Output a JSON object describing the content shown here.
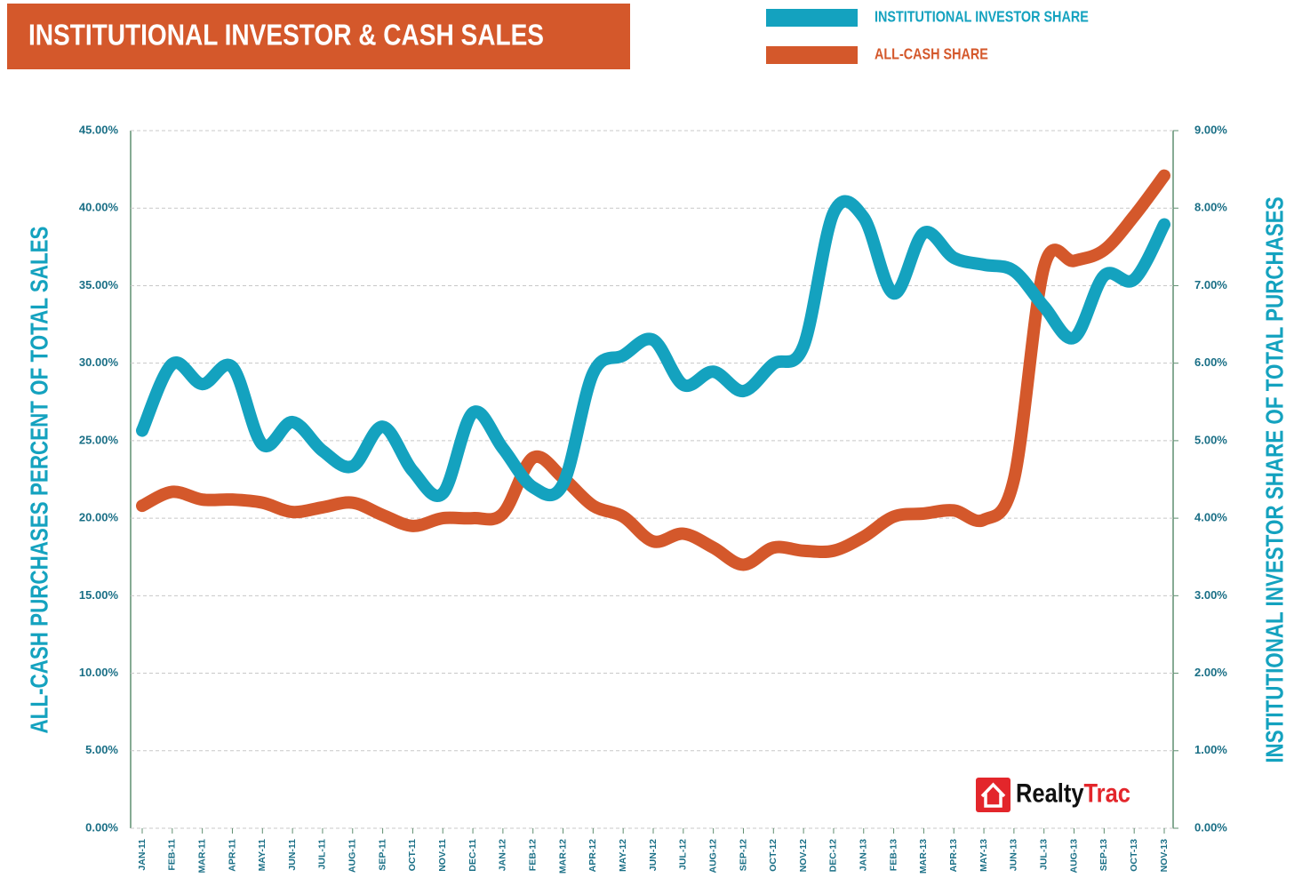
{
  "chart_data": {
    "type": "line",
    "title": "INSTITUTIONAL INVESTOR & CASH SALES",
    "y_label": "ALL-CASH PURCHASES PERCENT OF TOTAL SALES",
    "y2_label": "INSTITUTIONAL INVESTOR SHARE OF TOTAL PURCHASES",
    "logo": [
      "Realty",
      "Trac"
    ],
    "categories": [
      "JAN-11",
      "FEB-11",
      "MAR-11",
      "APR-11",
      "MAY-11",
      "JUN-11",
      "JUL-11",
      "AUG-11",
      "SEP-11",
      "OCT-11",
      "NOV-11",
      "DEC-11",
      "JAN-12",
      "FEB-12",
      "MAR-12",
      "APR-12",
      "MAY-12",
      "JUN-12",
      "JUL-12",
      "AUG-12",
      "SEP-12",
      "OCT-12",
      "NOV-12",
      "DEC-12",
      "JAN-13",
      "FEB-13",
      "MAR-13",
      "APR-13",
      "MAY-13",
      "JUN-13",
      "JUL-13",
      "AUG-13",
      "SEP-13",
      "OCT-13",
      "NOV-13"
    ],
    "series": [
      {
        "name": "INSTITUTIONAL INVESTOR SHARE",
        "color": "#14a2bf",
        "axis": "y2",
        "values": [
          5.13,
          5.99,
          5.73,
          5.95,
          4.95,
          5.24,
          4.87,
          4.67,
          5.18,
          4.61,
          4.32,
          5.36,
          4.9,
          4.4,
          4.44,
          5.87,
          6.1,
          6.3,
          5.72,
          5.89,
          5.64,
          5.99,
          6.22,
          7.94,
          7.88,
          6.9,
          7.68,
          7.36,
          7.27,
          7.19,
          6.73,
          6.33,
          7.13,
          7.08,
          7.79
        ]
      },
      {
        "name": "ALL-CASH SHARE",
        "color": "#d4582b",
        "axis": "y",
        "values": [
          20.8,
          21.7,
          21.2,
          21.2,
          21.0,
          20.4,
          20.7,
          21.0,
          20.2,
          19.5,
          20.0,
          20.0,
          20.3,
          23.9,
          22.6,
          20.8,
          20.1,
          18.5,
          19.0,
          18.1,
          17.0,
          18.1,
          17.9,
          17.9,
          18.8,
          20.1,
          20.3,
          20.5,
          19.9,
          22.5,
          36.2,
          36.6,
          37.3,
          39.5,
          42.1
        ]
      }
    ],
    "ylim": [
      0,
      45
    ],
    "yticks": [
      {
        "value": 0,
        "label": "0.00%"
      },
      {
        "value": 5,
        "label": "5.00%"
      },
      {
        "value": 10,
        "label": "10.00%"
      },
      {
        "value": 15,
        "label": "15.00%"
      },
      {
        "value": 20,
        "label": "20.00%"
      },
      {
        "value": 25,
        "label": "25.00%"
      },
      {
        "value": 30,
        "label": "30.00%"
      },
      {
        "value": 35,
        "label": "35.00%"
      },
      {
        "value": 40,
        "label": "40.00%"
      },
      {
        "value": 45,
        "label": "45.00%"
      }
    ],
    "y2lim": [
      0,
      9
    ],
    "y2ticks": [
      {
        "value": 0,
        "label": "0.00%"
      },
      {
        "value": 1,
        "label": "1.00%"
      },
      {
        "value": 2,
        "label": "2.00%"
      },
      {
        "value": 3,
        "label": "3.00%"
      },
      {
        "value": 4,
        "label": "4.00%"
      },
      {
        "value": 5,
        "label": "5.00%"
      },
      {
        "value": 6,
        "label": "6.00%"
      },
      {
        "value": 7,
        "label": "7.00%"
      },
      {
        "value": 8,
        "label": "8.00%"
      },
      {
        "value": 9,
        "label": "9.00%"
      }
    ],
    "grid": true
  }
}
